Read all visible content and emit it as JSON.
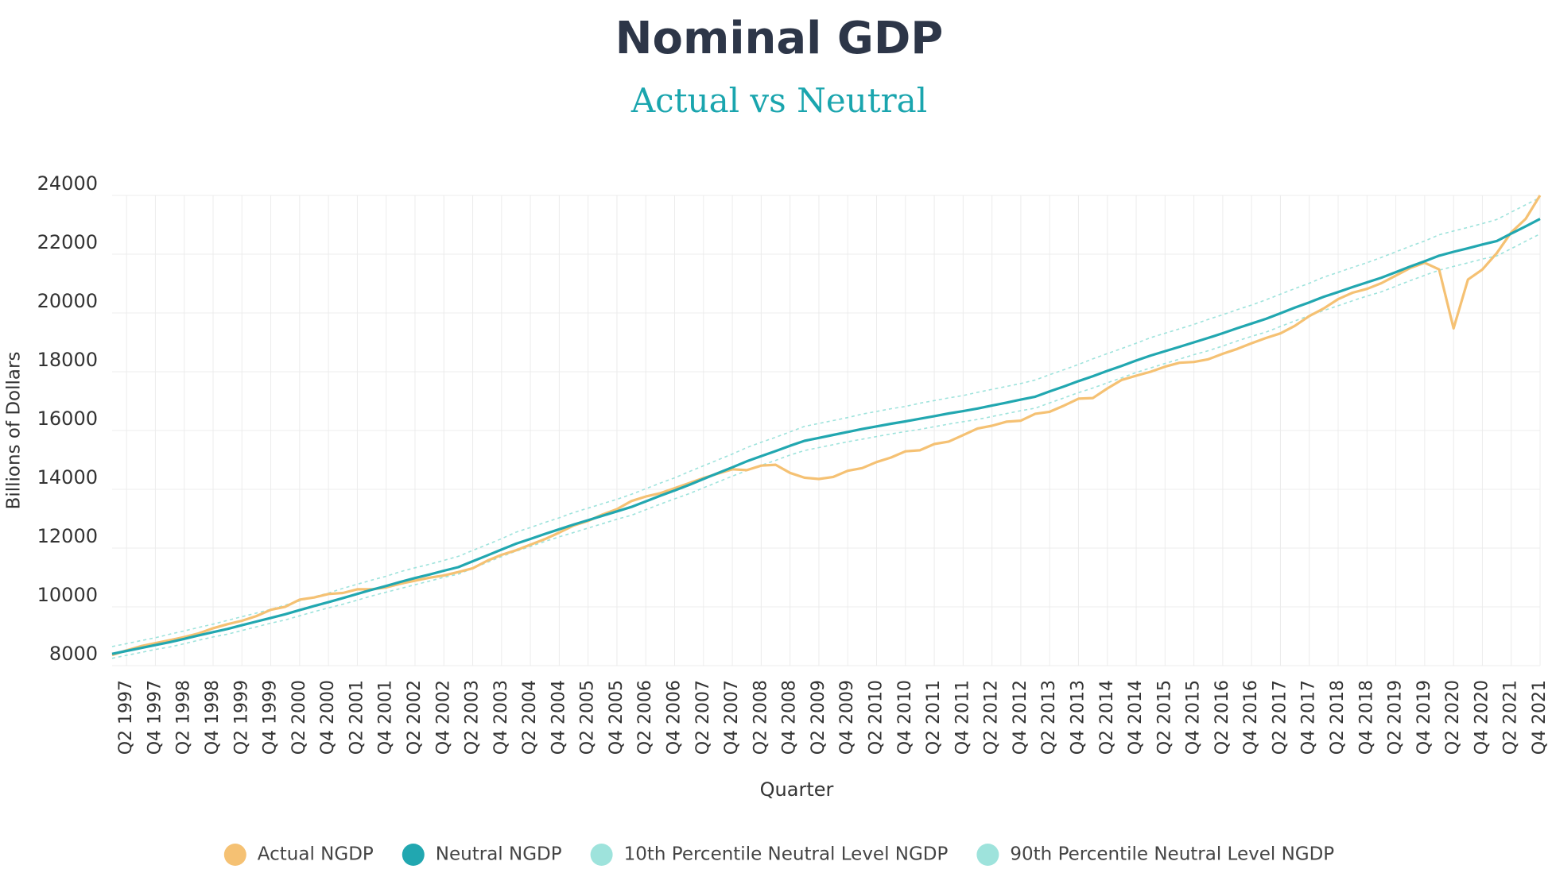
{
  "chart_data": {
    "type": "line",
    "title": "Nominal GDP",
    "subtitle": "Actual vs Neutral",
    "x_label": "Quarter",
    "y_label": "Billions of Dollars",
    "categories": [
      null,
      "Q2 1997",
      null,
      "Q4 1997",
      null,
      "Q2 1998",
      null,
      "Q4 1998",
      null,
      "Q2 1999",
      null,
      "Q4 1999",
      null,
      "Q2 2000",
      null,
      "Q4 2000",
      null,
      "Q2 2001",
      null,
      "Q4 2001",
      null,
      "Q2 2002",
      null,
      "Q4 2002",
      null,
      "Q2 2003",
      null,
      "Q4 2003",
      null,
      "Q2 2004",
      null,
      "Q4 2004",
      null,
      "Q2 2005",
      null,
      "Q4 2005",
      null,
      "Q2 2006",
      null,
      "Q4 2006",
      null,
      "Q2 2007",
      null,
      "Q4 2007",
      null,
      "Q2 2008",
      null,
      "Q4 2008",
      null,
      "Q2 2009",
      null,
      "Q4 2009",
      null,
      "Q2 2010",
      null,
      "Q4 2010",
      null,
      "Q2 2011",
      null,
      "Q4 2011",
      null,
      "Q2 2012",
      null,
      "Q4 2012",
      null,
      "Q2 2013",
      null,
      "Q4 2013",
      null,
      "Q2 2014",
      null,
      "Q4 2014",
      null,
      "Q2 2015",
      null,
      "Q4 2015",
      null,
      "Q2 2016",
      null,
      "Q4 2016",
      null,
      "Q2 2017",
      null,
      "Q4 2017",
      null,
      "Q2 2018",
      null,
      "Q4 2018",
      null,
      "Q2 2019",
      null,
      "Q4 2019",
      null,
      "Q2 2020",
      null,
      "Q4 2020",
      null,
      "Q2 2021",
      null,
      "Q4 2021"
    ],
    "series": [
      {
        "name": "Actual NGDP",
        "color": "#f5c173",
        "values": [
          8362,
          8518,
          8662,
          8765,
          8866,
          8970,
          9098,
          9273,
          9411,
          9526,
          9686,
          9900,
          10002,
          10247,
          10319,
          10439,
          10472,
          10597,
          10596,
          10661,
          10789,
          10893,
          10993,
          11071,
          11184,
          11313,
          11567,
          11770,
          11923,
          12113,
          12304,
          12527,
          12767,
          12922,
          13142,
          13325,
          13599,
          13754,
          13867,
          14038,
          14209,
          14383,
          14535,
          14681,
          14652,
          14805,
          14835,
          14559,
          14395,
          14352,
          14421,
          14629,
          14721,
          14926,
          15080,
          15291,
          15328,
          15540,
          15625,
          15843,
          16069,
          16163,
          16300,
          16336,
          16569,
          16637,
          16848,
          17084,
          17105,
          17432,
          17722,
          17866,
          18001,
          18172,
          18306,
          18333,
          18425,
          18612,
          18776,
          18969,
          19148,
          19305,
          19562,
          19895,
          20155,
          20470,
          20688,
          20819,
          21013,
          21272,
          21532,
          21707,
          21481,
          19477,
          21139,
          21478,
          22038,
          22741,
          23202,
          24002
        ]
      },
      {
        "name": "Neutral NGDP",
        "color": "#21a7b0",
        "values": [
          8400,
          8500,
          8600,
          8700,
          8800,
          8910,
          9030,
          9140,
          9250,
          9375,
          9500,
          9625,
          9750,
          9890,
          10030,
          10160,
          10300,
          10440,
          10580,
          10710,
          10850,
          10980,
          11100,
          11230,
          11350,
          11550,
          11750,
          11950,
          12150,
          12310,
          12480,
          12640,
          12800,
          12950,
          13100,
          13250,
          13400,
          13590,
          13780,
          13960,
          14150,
          14350,
          14550,
          14750,
          14950,
          15130,
          15300,
          15480,
          15650,
          15750,
          15850,
          15950,
          16050,
          16140,
          16230,
          16310,
          16400,
          16490,
          16580,
          16660,
          16750,
          16850,
          16950,
          17050,
          17150,
          17330,
          17500,
          17680,
          17850,
          18030,
          18200,
          18380,
          18550,
          18700,
          18850,
          19000,
          19150,
          19310,
          19480,
          19640,
          19800,
          19990,
          20180,
          20360,
          20550,
          20710,
          20880,
          21040,
          21200,
          21390,
          21580,
          21760,
          21950,
          22080,
          22200,
          22330,
          22450,
          22700,
          22950,
          23200
        ]
      },
      {
        "name": "10th Percentile Neutral Level NGDP",
        "color": "#9ee3dc",
        "values": [
          8250,
          8350,
          8450,
          8550,
          8635,
          8745,
          8865,
          8975,
          9070,
          9195,
          9320,
          9445,
          9555,
          9695,
          9835,
          9965,
          10090,
          10230,
          10370,
          10500,
          10625,
          10755,
          10875,
          11005,
          11110,
          11310,
          11510,
          11710,
          11895,
          12055,
          12225,
          12385,
          12530,
          12680,
          12830,
          12980,
          13115,
          13305,
          13495,
          13675,
          13850,
          14050,
          14250,
          14450,
          14635,
          14815,
          14985,
          15165,
          15320,
          15420,
          15520,
          15620,
          15705,
          15795,
          15885,
          15965,
          16040,
          16130,
          16220,
          16300,
          16375,
          16475,
          16575,
          16675,
          16760,
          16940,
          17110,
          17290,
          17445,
          17625,
          17795,
          17975,
          18130,
          18280,
          18430,
          18580,
          18715,
          18875,
          19045,
          19205,
          19350,
          19540,
          19730,
          19910,
          20085,
          20245,
          20415,
          20575,
          20720,
          20910,
          21100,
          21280,
          21455,
          21585,
          21705,
          21835,
          21940,
          22190,
          22440,
          22690
        ]
      },
      {
        "name": "90th Percentile Neutral Level NGDP",
        "color": "#9ee3dc",
        "values": [
          8650,
          8750,
          8850,
          8950,
          9070,
          9180,
          9300,
          9410,
          9540,
          9665,
          9790,
          9915,
          10060,
          10200,
          10340,
          10470,
          10630,
          10770,
          10910,
          11040,
          11200,
          11330,
          11450,
          11580,
          11720,
          11920,
          12120,
          12320,
          12540,
          12700,
          12870,
          13030,
          13210,
          13360,
          13510,
          13660,
          13830,
          14020,
          14210,
          14390,
          14600,
          14800,
          15000,
          15200,
          15420,
          15600,
          15770,
          15950,
          16140,
          16240,
          16340,
          16440,
          16560,
          16650,
          16740,
          16820,
          16930,
          17020,
          17110,
          17190,
          17300,
          17400,
          17500,
          17600,
          17720,
          17900,
          18070,
          18250,
          18440,
          18620,
          18790,
          18970,
          19160,
          19310,
          19460,
          19610,
          19780,
          19940,
          20110,
          20270,
          20450,
          20640,
          20830,
          21010,
          21220,
          21380,
          21550,
          21710,
          21890,
          22080,
          22270,
          22450,
          22660,
          22790,
          22910,
          23040,
          23180,
          23430,
          23680,
          23930
        ]
      }
    ],
    "ylim": [
      8000,
      24000
    ],
    "yticks": [
      8000,
      10000,
      12000,
      14000,
      16000,
      18000,
      20000,
      22000,
      24000
    ],
    "grid": true
  }
}
